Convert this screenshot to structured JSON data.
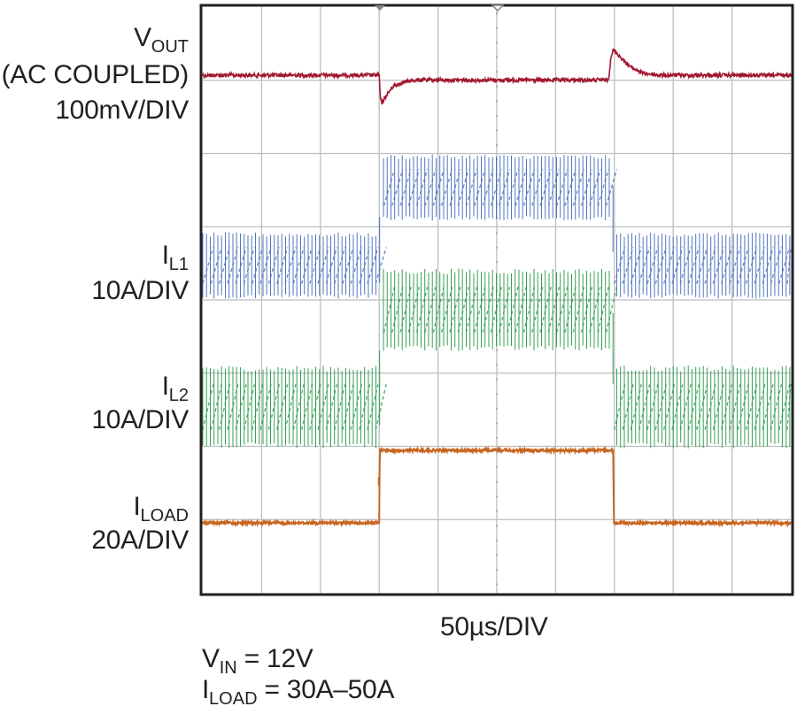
{
  "chart_data": {
    "type": "line",
    "title": "",
    "xlabel": "50µs/DIV",
    "x_divisions": 10,
    "y_divisions": 8,
    "x_range_us": [
      0,
      500
    ],
    "grid": true,
    "traces": [
      {
        "id": "vout",
        "label_main": "V",
        "label_sub": "OUT",
        "label_line2": "(AC COUPLED)",
        "scale": "100mV/DIV",
        "color": "#a0182f",
        "unit": "mV",
        "x_us": [
          0,
          150,
          151,
          152,
          156,
          162,
          170,
          180,
          195,
          220,
          250,
          345,
          347,
          349,
          352,
          358,
          365,
          375,
          388,
          400,
          500
        ],
        "y": [
          0,
          0,
          -48,
          -58,
          -42,
          -22,
          -15,
          -10,
          -10,
          -10,
          -10,
          -10,
          38,
          52,
          45,
          30,
          15,
          4,
          0,
          0,
          0
        ]
      },
      {
        "id": "il1",
        "label_main": "I",
        "label_sub": "L1",
        "scale": "10A/DIV",
        "color": "#4a6fba",
        "unit": "A",
        "x_us": [
          0,
          150,
          152,
          348,
          350,
          500
        ],
        "y": [
          15,
          15,
          25,
          25,
          15,
          15
        ],
        "ripple_pp_A": 8.5
      },
      {
        "id": "il2",
        "label_main": "I",
        "label_sub": "L2",
        "scale": "10A/DIV",
        "color": "#2e9a4e",
        "unit": "A",
        "x_us": [
          0,
          150,
          152,
          348,
          350,
          500
        ],
        "y": [
          15,
          15,
          25,
          25,
          15,
          15
        ],
        "ripple_pp_A": 8.5
      },
      {
        "id": "iload",
        "label_main": "I",
        "label_sub": "LOAD",
        "scale": "20A/DIV",
        "color": "#c8651e",
        "unit": "A",
        "x_us": [
          0,
          150,
          150.5,
          349,
          349.5,
          500
        ],
        "y": [
          30,
          30,
          50,
          50,
          30,
          30
        ]
      }
    ],
    "annotations": [
      {
        "main": "V",
        "sub": "IN",
        "rest": " = 12V"
      },
      {
        "main": "I",
        "sub": "LOAD",
        "rest": " = 30A–50A"
      }
    ],
    "colors": {
      "grid": "#bcbec0",
      "frame": "#231f20"
    }
  }
}
